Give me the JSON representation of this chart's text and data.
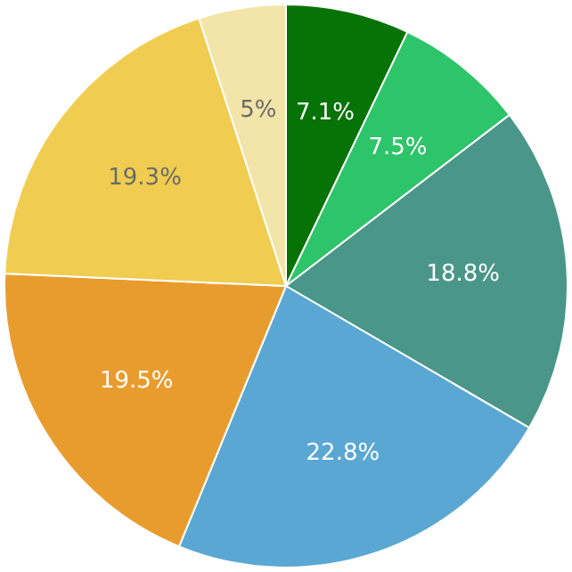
{
  "chart_data": {
    "type": "pie",
    "categories": [
      null,
      null,
      null,
      null,
      null,
      null,
      null
    ],
    "values": [
      7.1,
      7.5,
      18.8,
      22.8,
      19.5,
      19.3,
      5
    ],
    "colors": [
      "#067306",
      "#2ec46a",
      "#4a9688",
      "#5aa7d4",
      "#e99c2e",
      "#f0cd50",
      "#f3e4a8"
    ],
    "value_labels": [
      "7.1%",
      "7.5%",
      "18.8%",
      "22.8%",
      "19.5%",
      "19.3%",
      "5%"
    ],
    "legend": false
  }
}
